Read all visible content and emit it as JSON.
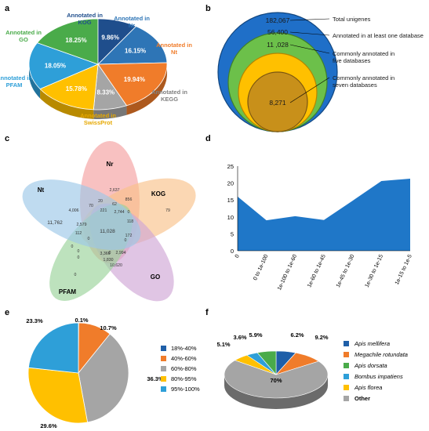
{
  "panel_letters": {
    "a": "a",
    "b": "b",
    "c": "c",
    "d": "d",
    "e": "e",
    "f": "f"
  },
  "colors": {
    "blue_dark": "#1f5fa8",
    "orange": "#f07c2a",
    "gray": "#a5a5a5",
    "yellow": "#ffc000",
    "sky": "#2e9fd8",
    "green": "#4aab4a",
    "area": "#1f77c8",
    "bronze": "#c8901a"
  },
  "chart_data": [
    {
      "panel": "a",
      "type": "pie",
      "slices": [
        {
          "label": "Annotated in Nr",
          "value": 16.15,
          "pct_label": "16.15%",
          "color": "#2e75b6"
        },
        {
          "label": "Annotated in Nt",
          "value": 19.94,
          "pct_label": "19.94%",
          "color": "#f07c2a"
        },
        {
          "label": "Annotated in KEGG",
          "value": 8.33,
          "pct_label": "8.33%",
          "color": "#a5a5a5"
        },
        {
          "label": "Annotated in SwissProt",
          "value": 15.78,
          "pct_label": "15.78%",
          "color": "#ffc000"
        },
        {
          "label": "Annotated in PFAM",
          "value": 18.05,
          "pct_label": "18.05%",
          "color": "#2e9fd8"
        },
        {
          "label": "Annotated in GO",
          "value": 18.25,
          "pct_label": "18.25%",
          "color": "#4aab4a"
        },
        {
          "label": "Annotated in KOG",
          "value": 9.86,
          "pct_label": "9.86%",
          "color": "#1f4e8c"
        }
      ]
    },
    {
      "panel": "b",
      "type": "nested-circles",
      "items": [
        {
          "value": "182,067",
          "label": "Total unigenes"
        },
        {
          "value": "56,400",
          "label": "Annotated in at least one database"
        },
        {
          "value": "11 ,028",
          "label": "Commonly annotated in five databases"
        },
        {
          "value": "8,271",
          "label": "Commonly annotated in seven databases"
        }
      ]
    },
    {
      "panel": "c",
      "type": "venn",
      "sets": [
        "Nr",
        "KOG",
        "GO",
        "PFAM",
        "Nt"
      ],
      "numbers": [
        "2,637",
        "856",
        "20",
        "62",
        "79",
        "70",
        "2,744",
        "4,006",
        "221",
        "0",
        "118",
        "11,762",
        "2,579",
        "11,028",
        "172",
        "112",
        "0",
        "0",
        "3,366",
        "2,994",
        "0",
        "1,830",
        "0",
        "10,620",
        "0",
        "0",
        "0"
      ]
    },
    {
      "panel": "d",
      "type": "area",
      "categories": [
        "0",
        "0 to 1e-100",
        "1e-100 to 1e-60",
        "1e-60 to 1e-45",
        "1e-45 to 1e-30",
        "1e-30 to 1e-15",
        "1e-15 to 1e-5"
      ],
      "values": [
        16,
        9,
        10.2,
        9.1,
        14.8,
        20.6,
        21.3
      ],
      "ylim": [
        0,
        25
      ],
      "yticks": [
        0,
        5,
        10,
        15,
        20,
        25
      ],
      "grid": false
    },
    {
      "panel": "e",
      "type": "pie",
      "slices": [
        {
          "label": "18%-40%",
          "value": 0.1,
          "pct_label": "0.1%",
          "color": "#1f5fa8"
        },
        {
          "label": "40%-60%",
          "value": 10.7,
          "pct_label": "10.7%",
          "color": "#f07c2a"
        },
        {
          "label": "60%-80%",
          "value": 36.3,
          "pct_label": "36.3%",
          "color": "#a5a5a5"
        },
        {
          "label": "80%-95%",
          "value": 29.6,
          "pct_label": "29.6%",
          "color": "#ffc000"
        },
        {
          "label": "95%-100%",
          "value": 23.3,
          "pct_label": "23.3%",
          "color": "#2e9fd8"
        }
      ],
      "legend_position": "right"
    },
    {
      "panel": "f",
      "type": "pie",
      "slices": [
        {
          "label": "Apis mellifera",
          "value": 6.2,
          "pct_label": "6.2%",
          "color": "#1f5fa8"
        },
        {
          "label": "Megachile rotundata",
          "value": 9.2,
          "pct_label": "9.2%",
          "color": "#f07c2a"
        },
        {
          "label": "Other",
          "value": 70,
          "pct_label": "70%",
          "color": "#a5a5a5"
        },
        {
          "label": "Apis florea",
          "value": 5.1,
          "pct_label": "5.1%",
          "color": "#ffc000"
        },
        {
          "label": "Bombus impatiens",
          "value": 3.6,
          "pct_label": "3.6%",
          "color": "#2e9fd8"
        },
        {
          "label": "Apis dorsata",
          "value": 5.9,
          "pct_label": "5.9%",
          "color": "#4aab4a"
        }
      ],
      "legend_order": [
        "Apis mellifera",
        "Megachile rotundata",
        "Apis dorsata",
        "Bombus impatiens",
        "Apis florea",
        "Other"
      ],
      "legend_position": "right"
    }
  ]
}
